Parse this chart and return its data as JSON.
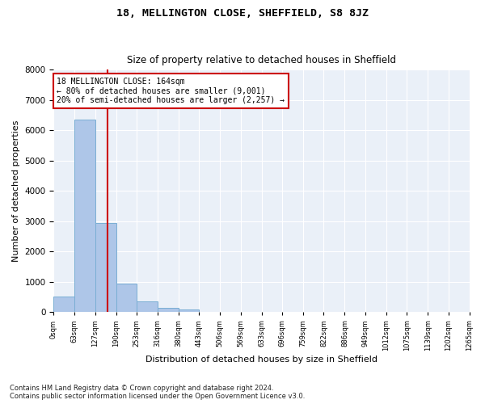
{
  "title": "18, MELLINGTON CLOSE, SHEFFIELD, S8 8JZ",
  "subtitle": "Size of property relative to detached houses in Sheffield",
  "xlabel": "Distribution of detached houses by size in Sheffield",
  "ylabel": "Number of detached properties",
  "footnote": "Contains HM Land Registry data © Crown copyright and database right 2024.\nContains public sector information licensed under the Open Government Licence v3.0.",
  "bar_edges": [
    0,
    63,
    127,
    190,
    253,
    316,
    380,
    443,
    506,
    569,
    633,
    696,
    759,
    822,
    886,
    949,
    1012,
    1075,
    1139,
    1202,
    1265
  ],
  "bar_heights": [
    530,
    6350,
    2950,
    950,
    350,
    150,
    100,
    0,
    0,
    0,
    0,
    0,
    0,
    0,
    0,
    0,
    0,
    0,
    0,
    0
  ],
  "bar_color": "#aec6e8",
  "bar_edge_color": "#7aaed4",
  "vline_x": 164,
  "vline_color": "#cc0000",
  "annotation_text": "18 MELLINGTON CLOSE: 164sqm\n← 80% of detached houses are smaller (9,001)\n20% of semi-detached houses are larger (2,257) →",
  "annotation_box_color": "#ffffff",
  "annotation_box_edge_color": "#cc0000",
  "ylim": [
    0,
    8000
  ],
  "background_color": "#eaf0f8",
  "grid_color": "#ffffff",
  "tick_labels": [
    "0sqm",
    "63sqm",
    "127sqm",
    "190sqm",
    "253sqm",
    "316sqm",
    "380sqm",
    "443sqm",
    "506sqm",
    "569sqm",
    "633sqm",
    "696sqm",
    "759sqm",
    "822sqm",
    "886sqm",
    "949sqm",
    "1012sqm",
    "1075sqm",
    "1139sqm",
    "1202sqm",
    "1265sqm"
  ],
  "yticks": [
    0,
    1000,
    2000,
    3000,
    4000,
    5000,
    6000,
    7000,
    8000
  ]
}
